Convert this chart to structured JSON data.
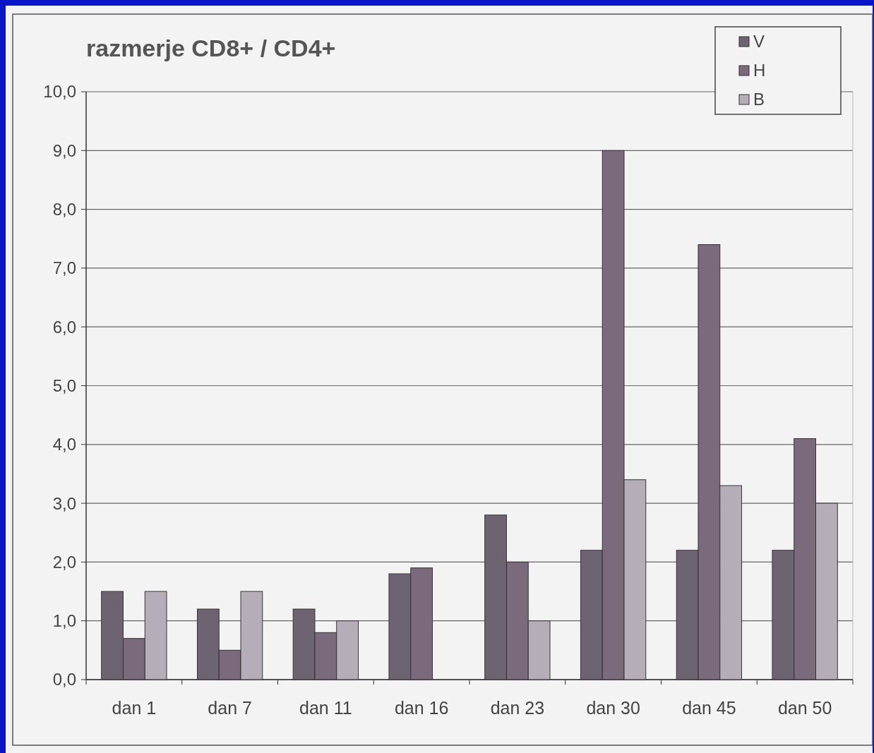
{
  "chart_data": {
    "type": "bar",
    "title": "razmerje CD8+ / CD4+",
    "categories": [
      "dan 1",
      "dan 7",
      "dan 11",
      "dan 16",
      "dan 23",
      "dan 30",
      "dan 45",
      "dan 50"
    ],
    "series": [
      {
        "name": "V",
        "color": "#6e6370",
        "values": [
          1.5,
          1.2,
          1.2,
          1.8,
          2.8,
          2.2,
          2.2,
          2.2
        ]
      },
      {
        "name": "H",
        "color": "#7a6a7c",
        "values": [
          0.7,
          0.5,
          0.8,
          1.9,
          2.0,
          9.0,
          7.4,
          4.1
        ]
      },
      {
        "name": "B",
        "color": "#b5adb8",
        "values": [
          1.5,
          1.5,
          1.0,
          null,
          1.0,
          3.4,
          3.3,
          3.0
        ]
      }
    ],
    "ylim": [
      0,
      10
    ],
    "yticks": [
      {
        "value": 0,
        "label": "0,0"
      },
      {
        "value": 1,
        "label": "1,0"
      },
      {
        "value": 2,
        "label": "2,0"
      },
      {
        "value": 3,
        "label": "3,0"
      },
      {
        "value": 4,
        "label": "4,0"
      },
      {
        "value": 5,
        "label": "5,0"
      },
      {
        "value": 6,
        "label": "6,0"
      },
      {
        "value": 7,
        "label": "7,0"
      },
      {
        "value": 8,
        "label": "8,0"
      },
      {
        "value": 9,
        "label": "9,0"
      },
      {
        "value": 10,
        "label": "10,0"
      }
    ],
    "grid": "y",
    "legend": "top right"
  }
}
